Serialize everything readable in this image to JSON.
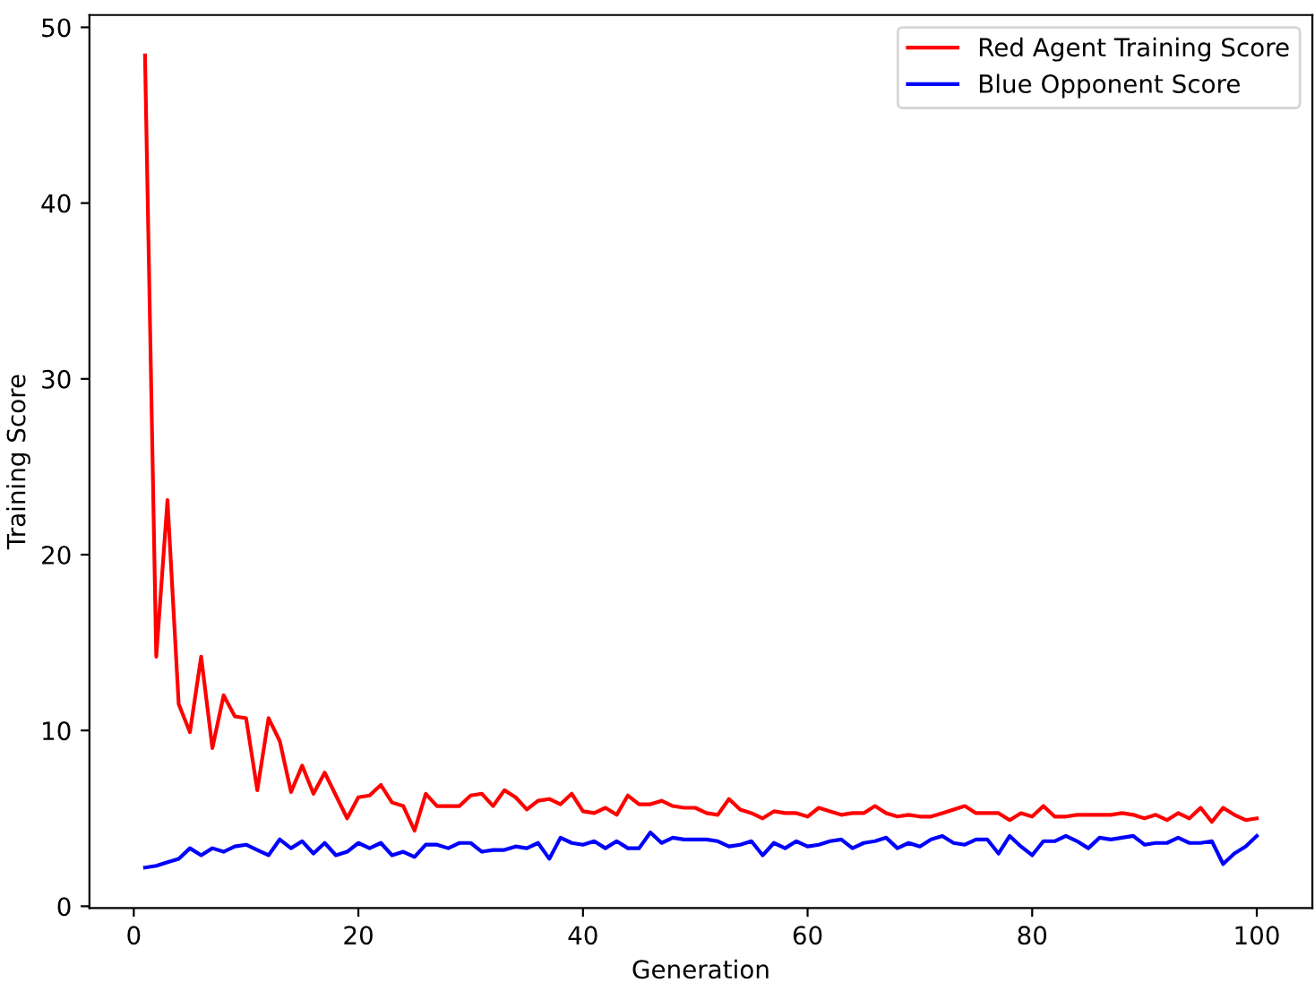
{
  "chart_data": {
    "type": "line",
    "xlabel": "Generation",
    "ylabel": "Training Score",
    "x": [
      1,
      2,
      3,
      4,
      5,
      6,
      7,
      8,
      9,
      10,
      11,
      12,
      13,
      14,
      15,
      16,
      17,
      18,
      19,
      20,
      21,
      22,
      23,
      24,
      25,
      26,
      27,
      28,
      29,
      30,
      31,
      32,
      33,
      34,
      35,
      36,
      37,
      38,
      39,
      40,
      41,
      42,
      43,
      44,
      45,
      46,
      47,
      48,
      49,
      50,
      51,
      52,
      53,
      54,
      55,
      56,
      57,
      58,
      59,
      60,
      61,
      62,
      63,
      64,
      65,
      66,
      67,
      68,
      69,
      70,
      71,
      72,
      73,
      74,
      75,
      76,
      77,
      78,
      79,
      80,
      81,
      82,
      83,
      84,
      85,
      86,
      87,
      88,
      89,
      90,
      91,
      92,
      93,
      94,
      95,
      96,
      97,
      98,
      99,
      100
    ],
    "series": [
      {
        "name": "Red Agent Training Score",
        "color": "#ff0000",
        "values": [
          48.4,
          14.2,
          23.1,
          11.5,
          9.9,
          14.2,
          9.0,
          12.0,
          10.8,
          10.7,
          6.6,
          10.7,
          9.4,
          6.5,
          8.0,
          6.4,
          7.6,
          6.3,
          5.0,
          6.2,
          6.3,
          6.9,
          5.9,
          5.7,
          4.3,
          6.4,
          5.7,
          5.7,
          5.7,
          6.3,
          6.4,
          5.7,
          6.6,
          6.2,
          5.5,
          6.0,
          6.1,
          5.8,
          6.4,
          5.4,
          5.3,
          5.6,
          5.2,
          6.3,
          5.8,
          5.8,
          6.0,
          5.7,
          5.6,
          5.6,
          5.3,
          5.2,
          6.1,
          5.5,
          5.3,
          5.0,
          5.4,
          5.3,
          5.3,
          5.1,
          5.6,
          5.4,
          5.2,
          5.3,
          5.3,
          5.7,
          5.3,
          5.1,
          5.2,
          5.1,
          5.1,
          5.3,
          5.5,
          5.7,
          5.3,
          5.3,
          5.3,
          4.9,
          5.3,
          5.1,
          5.7,
          5.1,
          5.1,
          5.2,
          5.2,
          5.2,
          5.2,
          5.3,
          5.2,
          5.0,
          5.2,
          4.9,
          5.3,
          5.0,
          5.6,
          4.8,
          5.6,
          5.2,
          4.9,
          5.0
        ]
      },
      {
        "name": "Blue Opponent Score",
        "color": "#0000ff",
        "values": [
          2.2,
          2.3,
          2.5,
          2.7,
          3.3,
          2.9,
          3.3,
          3.1,
          3.4,
          3.5,
          3.2,
          2.9,
          3.8,
          3.3,
          3.7,
          3.0,
          3.6,
          2.9,
          3.1,
          3.6,
          3.3,
          3.6,
          2.9,
          3.1,
          2.8,
          3.5,
          3.5,
          3.3,
          3.6,
          3.6,
          3.1,
          3.2,
          3.2,
          3.4,
          3.3,
          3.6,
          2.7,
          3.9,
          3.6,
          3.5,
          3.7,
          3.3,
          3.7,
          3.3,
          3.3,
          4.2,
          3.6,
          3.9,
          3.8,
          3.8,
          3.8,
          3.7,
          3.4,
          3.5,
          3.7,
          2.9,
          3.6,
          3.3,
          3.7,
          3.4,
          3.5,
          3.7,
          3.8,
          3.3,
          3.6,
          3.7,
          3.9,
          3.3,
          3.6,
          3.4,
          3.8,
          4.0,
          3.6,
          3.5,
          3.8,
          3.8,
          3.0,
          4.0,
          3.4,
          2.9,
          3.7,
          3.7,
          4.0,
          3.7,
          3.3,
          3.9,
          3.8,
          3.9,
          4.0,
          3.5,
          3.6,
          3.6,
          3.9,
          3.6,
          3.6,
          3.7,
          2.4,
          3.0,
          3.4,
          4.0
        ]
      }
    ],
    "xlim": [
      -3.95,
      104.95
    ],
    "xticks": [
      0,
      20,
      40,
      60,
      80,
      100
    ],
    "ylim": [
      -0.1,
      50.7
    ],
    "yticks": [
      0,
      10,
      20,
      30,
      40,
      50
    ],
    "legend": "top right",
    "line_style": "solid",
    "marker": "none",
    "grid": false
  }
}
